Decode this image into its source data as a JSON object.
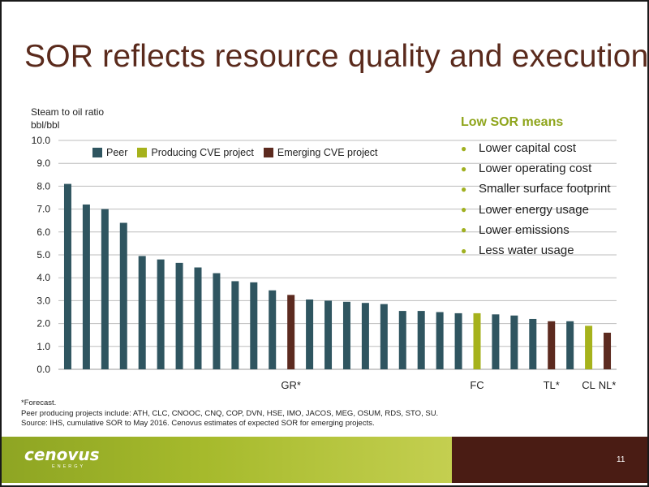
{
  "title": "SOR reflects resource quality and execution",
  "y_axis_title_line1": "Steam to oil ratio",
  "y_axis_title_line2": "bbl/bbl",
  "legend": {
    "peer": "Peer",
    "producing": "Producing CVE project",
    "emerging": "Emerging CVE project"
  },
  "colors": {
    "peer": "#2f5560",
    "producing": "#a6b21c",
    "emerging": "#5c2a1f",
    "gridline": "#bdbdbd"
  },
  "side_panel": {
    "title": "Low SOR means",
    "items": [
      "Lower capital cost",
      "Lower operating cost",
      "Smaller surface footprint",
      "Lower energy usage",
      "Lower emissions",
      "Less water usage"
    ]
  },
  "footnotes": {
    "line1": "*Forecast.",
    "line2": "Peer producing projects include: ATH, CLC, CNOOC, CNQ, COP, DVN, HSE, IMO, JACOS, MEG, OSUM, RDS, STO, SU.",
    "line3": "Source: IHS, cumulative SOR to May 2016. Cenovus estimates of expected SOR for emerging projects."
  },
  "footer": {
    "logo": "cenovus",
    "logo_sub": "ENERGY",
    "page_number": "11"
  },
  "chart_data": {
    "type": "bar",
    "ylim": [
      0,
      10
    ],
    "yticks": [
      "0.0",
      "1.0",
      "2.0",
      "3.0",
      "4.0",
      "5.0",
      "6.0",
      "7.0",
      "8.0",
      "9.0",
      "10.0"
    ],
    "grid": true,
    "legend_position": "top-left",
    "bars": [
      {
        "label": "",
        "value": 8.1,
        "group": "peer"
      },
      {
        "label": "",
        "value": 7.2,
        "group": "peer"
      },
      {
        "label": "",
        "value": 7.0,
        "group": "peer"
      },
      {
        "label": "",
        "value": 6.4,
        "group": "peer"
      },
      {
        "label": "",
        "value": 4.95,
        "group": "peer"
      },
      {
        "label": "",
        "value": 4.8,
        "group": "peer"
      },
      {
        "label": "",
        "value": 4.65,
        "group": "peer"
      },
      {
        "label": "",
        "value": 4.45,
        "group": "peer"
      },
      {
        "label": "",
        "value": 4.2,
        "group": "peer"
      },
      {
        "label": "",
        "value": 3.85,
        "group": "peer"
      },
      {
        "label": "",
        "value": 3.8,
        "group": "peer"
      },
      {
        "label": "",
        "value": 3.45,
        "group": "peer"
      },
      {
        "label": "GR*",
        "value": 3.25,
        "group": "emerging"
      },
      {
        "label": "",
        "value": 3.05,
        "group": "peer"
      },
      {
        "label": "",
        "value": 3.0,
        "group": "peer"
      },
      {
        "label": "",
        "value": 2.95,
        "group": "peer"
      },
      {
        "label": "",
        "value": 2.9,
        "group": "peer"
      },
      {
        "label": "",
        "value": 2.85,
        "group": "peer"
      },
      {
        "label": "",
        "value": 2.55,
        "group": "peer"
      },
      {
        "label": "",
        "value": 2.55,
        "group": "peer"
      },
      {
        "label": "",
        "value": 2.5,
        "group": "peer"
      },
      {
        "label": "",
        "value": 2.45,
        "group": "peer"
      },
      {
        "label": "FC",
        "value": 2.45,
        "group": "producing"
      },
      {
        "label": "",
        "value": 2.4,
        "group": "peer"
      },
      {
        "label": "",
        "value": 2.35,
        "group": "peer"
      },
      {
        "label": "",
        "value": 2.2,
        "group": "peer"
      },
      {
        "label": "TL*",
        "value": 2.1,
        "group": "emerging"
      },
      {
        "label": "",
        "value": 2.1,
        "group": "peer"
      },
      {
        "label": "CL",
        "value": 1.9,
        "group": "producing"
      },
      {
        "label": "NL*",
        "value": 1.6,
        "group": "emerging"
      }
    ]
  }
}
